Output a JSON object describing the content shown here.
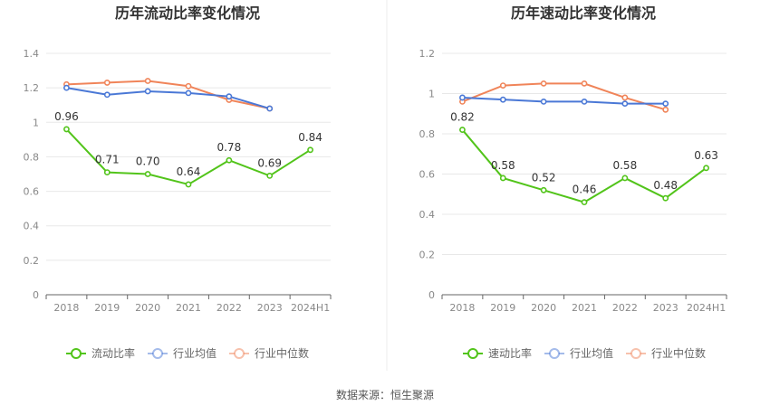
{
  "source": "数据来源：恒生聚源",
  "legend_colors": {
    "primary": "#52c41a",
    "avg": "#4a78d6",
    "median": "#f08459"
  },
  "chart_data": [
    {
      "type": "line",
      "title": "历年流动比率变化情况",
      "categories": [
        "2018",
        "2019",
        "2020",
        "2021",
        "2022",
        "2023",
        "2024H1"
      ],
      "ylim": [
        0,
        1.4
      ],
      "yticks": [
        0,
        0.2,
        0.4,
        0.6,
        0.8,
        1,
        1.2,
        1.4
      ],
      "ytick_labels": [
        "0",
        "0.2",
        "0.4",
        "0.6",
        "0.8",
        "1",
        "1.2",
        "1.4"
      ],
      "grid": true,
      "legend_position": "bottom",
      "series": [
        {
          "name": "流动比率",
          "color": "#52c41a",
          "values": [
            0.96,
            0.71,
            0.7,
            0.64,
            0.78,
            0.69,
            0.84
          ],
          "labels": [
            "0.96",
            "0.71",
            "0.70",
            "0.64",
            "0.78",
            "0.69",
            "0.84"
          ]
        },
        {
          "name": "行业均值",
          "color": "#4a78d6",
          "values": [
            1.2,
            1.16,
            1.18,
            1.17,
            1.15,
            1.08,
            null
          ]
        },
        {
          "name": "行业中位数",
          "color": "#f08459",
          "values": [
            1.22,
            1.23,
            1.24,
            1.21,
            1.13,
            1.08,
            null
          ]
        }
      ]
    },
    {
      "type": "line",
      "title": "历年速动比率变化情况",
      "categories": [
        "2018",
        "2019",
        "2020",
        "2021",
        "2022",
        "2023",
        "2024H1"
      ],
      "ylim": [
        0,
        1.2
      ],
      "yticks": [
        0,
        0.2,
        0.4,
        0.6,
        0.8,
        1,
        1.2
      ],
      "ytick_labels": [
        "0",
        "0.2",
        "0.4",
        "0.6",
        "0.8",
        "1",
        "1.2"
      ],
      "grid": true,
      "legend_position": "bottom",
      "series": [
        {
          "name": "速动比率",
          "color": "#52c41a",
          "values": [
            0.82,
            0.58,
            0.52,
            0.46,
            0.58,
            0.48,
            0.63
          ],
          "labels": [
            "0.82",
            "0.58",
            "0.52",
            "0.46",
            "0.58",
            "0.48",
            "0.63"
          ]
        },
        {
          "name": "行业均值",
          "color": "#4a78d6",
          "values": [
            0.98,
            0.97,
            0.96,
            0.96,
            0.95,
            0.95,
            null
          ]
        },
        {
          "name": "行业中位数",
          "color": "#f08459",
          "values": [
            0.96,
            1.04,
            1.05,
            1.05,
            0.98,
            0.92,
            null
          ]
        }
      ]
    }
  ]
}
